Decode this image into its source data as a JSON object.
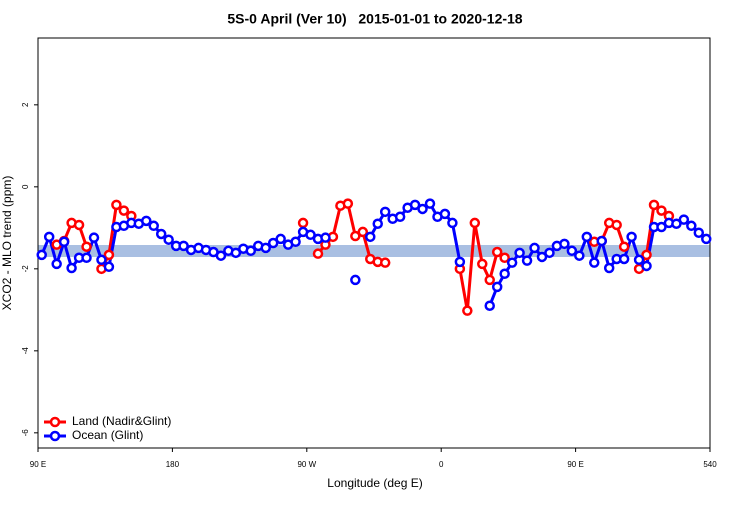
{
  "chart_data": {
    "type": "line",
    "title": "5S-0 April (Ver 10)   2015-01-01 to 2020-12-18",
    "xlabel": "Longitude (deg E)",
    "ylabel": "XCO2 - MLO trend (ppm)",
    "x": [
      92.5,
      97.5,
      102.5,
      107.5,
      112.5,
      117.5,
      122.5,
      127.5,
      132.5,
      137.5,
      142.5,
      147.5,
      152.5,
      157.5,
      162.5,
      167.5,
      172.5,
      177.5,
      182.5,
      187.5,
      192.5,
      197.5,
      202.5,
      207.5,
      212.5,
      217.5,
      222.5,
      227.5,
      232.5,
      237.5,
      242.5,
      247.5,
      252.5,
      257.5,
      262.5,
      267.5,
      272.5,
      277.5,
      282.5,
      287.5,
      292.5,
      297.5,
      302.5,
      307.5,
      312.5,
      317.5,
      322.5,
      327.5,
      332.5,
      337.5,
      342.5,
      347.5,
      352.5,
      357.5,
      362.5,
      367.5,
      372.5,
      377.5,
      382.5,
      387.5,
      392.5,
      397.5,
      402.5,
      407.5,
      412.5,
      417.5,
      422.5,
      427.5,
      432.5,
      437.5,
      442.5,
      447.5,
      452.5,
      457.5,
      462.5,
      467.5,
      472.5,
      477.5,
      482.5,
      487.5,
      492.5,
      497.5,
      502.5,
      507.5,
      512.5,
      517.5,
      522.5,
      527.5,
      532.5,
      537.5
    ],
    "series": [
      {
        "name": "Land (Nadir&Glint)",
        "color": "#ff0000",
        "values": [
          null,
          null,
          -1.41,
          -1.32,
          -0.88,
          -0.93,
          -1.46,
          null,
          -2.0,
          -1.66,
          -0.44,
          -0.58,
          -0.71,
          null,
          null,
          null,
          null,
          null,
          null,
          null,
          null,
          null,
          null,
          null,
          null,
          null,
          null,
          null,
          null,
          null,
          null,
          null,
          null,
          null,
          null,
          -0.88,
          null,
          -1.63,
          -1.41,
          -1.22,
          -0.46,
          -0.41,
          -1.2,
          -1.1,
          -1.76,
          -1.83,
          -1.85,
          null,
          null,
          null,
          null,
          null,
          null,
          null,
          null,
          null,
          -2.0,
          -3.02,
          -0.88,
          -1.88,
          -2.27,
          -1.59,
          -1.73,
          null,
          null,
          null,
          null,
          null,
          null,
          null,
          null,
          null,
          null,
          null,
          -1.34,
          -1.32,
          -0.88,
          -0.93,
          -1.46,
          null,
          -2.0,
          -1.66,
          -0.44,
          -0.58,
          -0.71,
          null,
          null,
          null,
          null,
          null
        ]
      },
      {
        "name": "Ocean (Glint)",
        "color": "#0000ff",
        "values": [
          -1.66,
          -1.22,
          -1.88,
          -1.34,
          -1.98,
          -1.73,
          -1.73,
          -1.24,
          -1.78,
          -1.95,
          -0.98,
          -0.95,
          -0.88,
          -0.9,
          -0.83,
          -0.95,
          -1.15,
          -1.29,
          -1.44,
          -1.44,
          -1.54,
          -1.49,
          -1.54,
          -1.59,
          -1.68,
          -1.56,
          -1.61,
          -1.51,
          -1.56,
          -1.44,
          -1.49,
          -1.37,
          -1.27,
          -1.41,
          -1.34,
          -1.1,
          -1.17,
          -1.27,
          -1.24,
          null,
          null,
          null,
          -2.27,
          null,
          -1.22,
          -0.9,
          -0.61,
          -0.78,
          -0.73,
          -0.51,
          -0.44,
          -0.54,
          -0.41,
          -0.73,
          -0.66,
          -0.88,
          -1.83,
          null,
          null,
          null,
          -2.9,
          -2.44,
          -2.12,
          -1.85,
          -1.61,
          -1.8,
          -1.49,
          -1.71,
          -1.61,
          -1.44,
          -1.39,
          -1.56,
          -1.68,
          -1.22,
          -1.85,
          -1.32,
          -1.98,
          -1.76,
          -1.76,
          -1.22,
          -1.78,
          -1.93,
          -0.98,
          -0.98,
          -0.88,
          -0.9,
          -0.8,
          -0.95,
          -1.12,
          -1.27
        ]
      }
    ],
    "xlim": [
      90,
      540
    ],
    "xticks": [
      {
        "value": 90,
        "label": "90 E"
      },
      180,
      {
        "value": 270,
        "label": "90 W"
      },
      {
        "value": 360,
        "label": "0"
      },
      {
        "value": 450,
        "label": "90 E"
      },
      540
    ],
    "ylim": [
      -6.37,
      3.63
    ],
    "yticks": [
      2,
      0,
      -2,
      -4,
      -6
    ],
    "legend": "bottom-left"
  }
}
